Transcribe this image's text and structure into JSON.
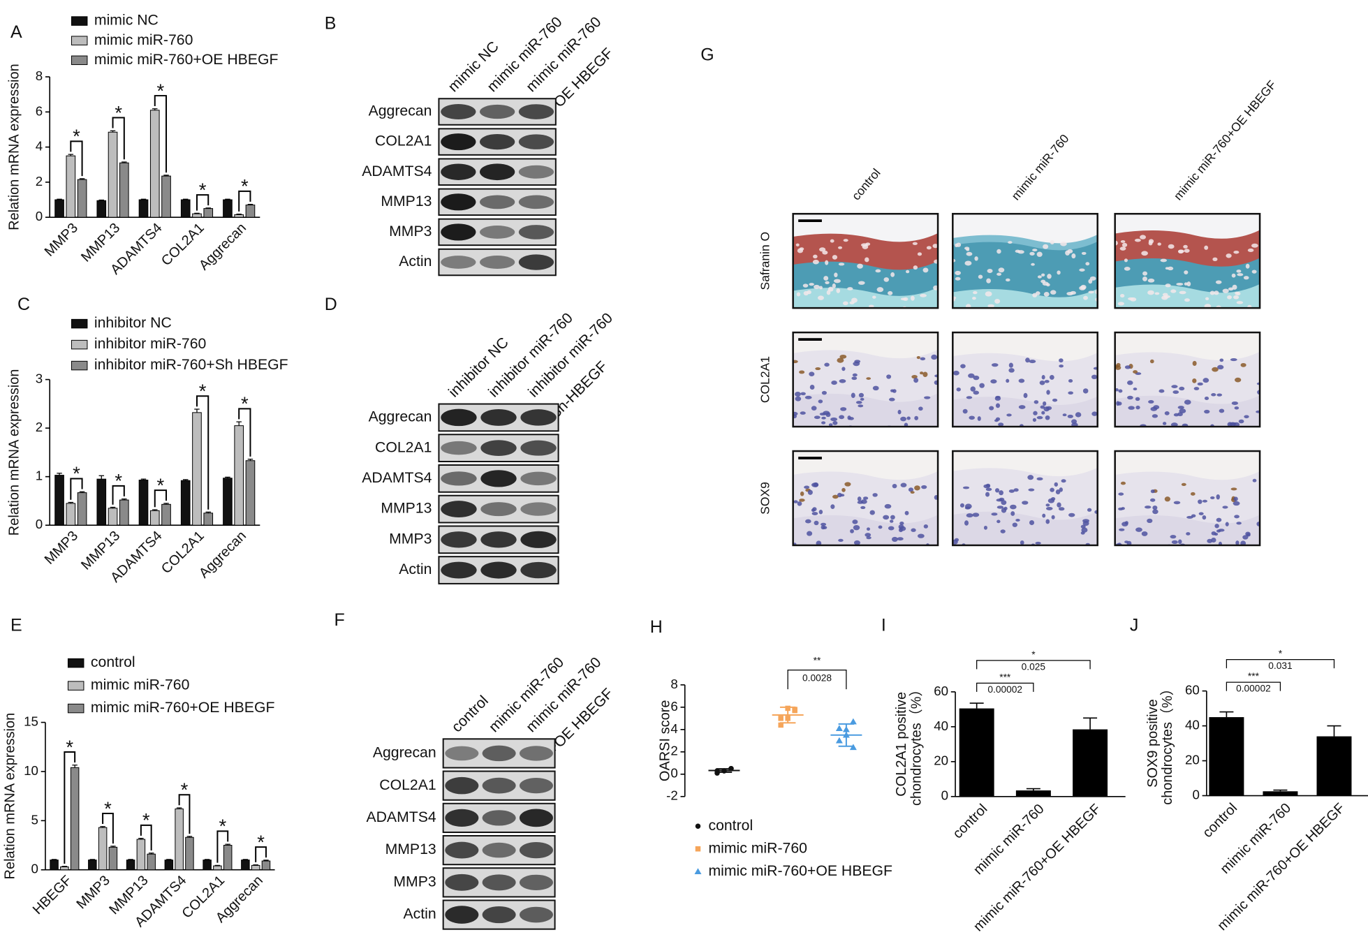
{
  "chart_data": [
    {
      "panel": "A",
      "type": "bar",
      "y_label": [
        "Relation mRNA expression"
      ],
      "categories": [
        "MMP3",
        "MMP13",
        "ADAMTS4",
        "COL2A1",
        "Aggrecan"
      ],
      "series": [
        {
          "name": "mimic NC",
          "color": "#111111",
          "values": [
            1,
            0.95,
            1,
            1,
            1
          ],
          "errors": [
            0.03,
            0.03,
            0.03,
            0.03,
            0.03
          ]
        },
        {
          "name": "mimic miR-760",
          "color": "#bdbdbd",
          "values": [
            3.5,
            4.85,
            6.1,
            0.2,
            0.15
          ],
          "errors": [
            0.08,
            0.08,
            0.08,
            0.03,
            0.03
          ]
        },
        {
          "name": "mimic miR-760+OE HBEGF",
          "color": "#8a8a8a",
          "values": [
            2.15,
            3.1,
            2.35,
            0.5,
            0.7
          ],
          "errors": [
            0.05,
            0.05,
            0.05,
            0.03,
            0.04
          ]
        }
      ],
      "annotations": [
        "*",
        "*",
        "*",
        "*",
        "*"
      ],
      "ylim": [
        0,
        8
      ],
      "yticks": [
        0,
        2,
        4,
        6,
        8
      ],
      "legend": "upper left"
    },
    {
      "panel": "C",
      "type": "bar",
      "y_label": [
        "Relation mRNA expression"
      ],
      "categories": [
        "MMP3",
        "MMP13",
        "ADAMTS4",
        "COL2A1",
        "Aggrecan"
      ],
      "series": [
        {
          "name": "inhibitor NC",
          "color": "#111111",
          "values": [
            1.03,
            0.95,
            0.93,
            0.92,
            0.97
          ],
          "errors": [
            0.04,
            0.07,
            0.02,
            0.02,
            0.02
          ]
        },
        {
          "name": "inhibitor miR-760",
          "color": "#bdbdbd",
          "values": [
            0.45,
            0.35,
            0.3,
            2.32,
            2.05
          ],
          "errors": [
            0.02,
            0.02,
            0.02,
            0.07,
            0.08
          ]
        },
        {
          "name": "inhibitor miR-760+Sh HBEGF",
          "color": "#8a8a8a",
          "values": [
            0.67,
            0.52,
            0.43,
            0.25,
            1.33
          ],
          "errors": [
            0.02,
            0.02,
            0.02,
            0.02,
            0.03
          ]
        }
      ],
      "annotations": [
        "*",
        "*",
        "*",
        "*",
        "*"
      ],
      "ylim": [
        0,
        3
      ],
      "yticks": [
        0,
        1,
        2,
        3
      ],
      "legend": "upper left"
    },
    {
      "panel": "E",
      "type": "bar",
      "y_label": [
        "Relation mRNA expression"
      ],
      "categories": [
        "HBEGF",
        "MMP3",
        "MMP13",
        "ADAMTS4",
        "COL2A1",
        "Aggrecan"
      ],
      "series": [
        {
          "name": "control",
          "color": "#111111",
          "values": [
            1,
            1,
            1,
            1,
            1,
            1
          ],
          "errors": [
            0.05,
            0.05,
            0.05,
            0.05,
            0.05,
            0.05
          ]
        },
        {
          "name": "mimic miR-760",
          "color": "#bdbdbd",
          "values": [
            0.3,
            4.3,
            3.1,
            6.2,
            0.4,
            0.45
          ],
          "errors": [
            0.05,
            0.1,
            0.1,
            0.1,
            0.05,
            0.05
          ]
        },
        {
          "name": "mimic miR-760+OE HBEGF",
          "color": "#8a8a8a",
          "values": [
            10.4,
            2.3,
            1.6,
            3.3,
            2.5,
            0.9
          ],
          "errors": [
            0.25,
            0.1,
            0.1,
            0.1,
            0.1,
            0.08
          ]
        }
      ],
      "annotations": [
        "*",
        "*",
        "*",
        "*",
        "*",
        "*"
      ],
      "ylim": [
        0,
        15
      ],
      "yticks": [
        0,
        5,
        10,
        15
      ],
      "legend": "upper left"
    },
    {
      "panel": "H",
      "type": "scatter",
      "y_label": [
        "OARSI score"
      ],
      "series": [
        {
          "name": "control",
          "color": "#111111",
          "marker": "circle",
          "values": [
            0.3,
            0.3,
            0.5,
            0.1,
            0.3,
            0.5
          ],
          "mean": 0.33,
          "sd": 0.15
        },
        {
          "name": "mimic miR-760",
          "color": "#f5a55a",
          "marker": "square",
          "values": [
            5.0,
            5.9,
            5.7,
            4.4,
            5.0,
            5.8
          ],
          "mean": 5.3,
          "sd": 0.7
        },
        {
          "name": "mimic miR-760+OE HBEGF",
          "color": "#4a9be0",
          "marker": "triangle",
          "values": [
            3.0,
            4.0,
            2.4,
            4.1,
            3.5,
            4.7
          ],
          "mean": 3.5,
          "sd": 1.0
        }
      ],
      "annotations": [
        {
          "stars": "**",
          "p": "0.0028"
        }
      ],
      "ylim": [
        -2,
        8
      ],
      "yticks": [
        -2,
        0,
        2,
        4,
        6,
        8
      ],
      "legend": "below"
    },
    {
      "panel": "I",
      "type": "bar",
      "y_label": [
        "COL2A1 positive",
        "chondrocytes（%）"
      ],
      "categories": [
        "control",
        "mimic miR-760",
        "mimic miR-760+OE HBEGF"
      ],
      "values": [
        50.5,
        3.5,
        38.5
      ],
      "errors": [
        3,
        1,
        6.5
      ],
      "color": "#000000",
      "annotations": [
        {
          "stars": "***",
          "p": "0.00002"
        },
        {
          "stars": "*",
          "p": "0.025"
        }
      ],
      "ylim": [
        0,
        60
      ],
      "yticks": [
        0,
        20,
        40,
        60
      ]
    },
    {
      "panel": "J",
      "type": "bar",
      "y_label": [
        "SOX9 positive",
        "chondrocytes（%）"
      ],
      "categories": [
        "control",
        "mimic miR-760",
        "mimic miR-760+OE HBEGF"
      ],
      "values": [
        45,
        2.5,
        34
      ],
      "errors": [
        3,
        0.7,
        6
      ],
      "color": "#000000",
      "annotations": [
        {
          "stars": "***",
          "p": "0.00002"
        },
        {
          "stars": "*",
          "p": "0.031"
        }
      ],
      "ylim": [
        0,
        60
      ],
      "yticks": [
        0,
        20,
        40,
        60
      ]
    }
  ],
  "blots": [
    {
      "panel": "B",
      "columns": [
        [
          "mimic NC"
        ],
        [
          "mimic miR-760"
        ],
        [
          "mimic miR-760",
          "+OE HBEGF"
        ]
      ],
      "rows": [
        "Aggrecan",
        "COL2A1",
        "ADAMTS4",
        "MMP13",
        "MMP3",
        "Actin"
      ]
    },
    {
      "panel": "D",
      "columns": [
        [
          "inhibitor NC"
        ],
        [
          "inhibitor miR-760"
        ],
        [
          "inhibitor miR-760",
          "Sh-HBEGF"
        ]
      ],
      "rows": [
        "Aggrecan",
        "COL2A1",
        "ADAMTS4",
        "MMP13",
        "MMP3",
        "Actin"
      ]
    },
    {
      "panel": "F",
      "columns": [
        [
          "control"
        ],
        [
          "mimic miR-760"
        ],
        [
          "mimic miR-760",
          "+OE HBEGF"
        ]
      ],
      "rows": [
        "Aggrecan",
        "COL2A1",
        "ADAMTS4",
        "MMP13",
        "MMP3",
        "Actin"
      ]
    }
  ],
  "histology": {
    "panel": "G",
    "columns": [
      "control",
      "mimic miR-760",
      "mimic miR-760+OE HBEGF"
    ],
    "rows": [
      "Safranin O",
      "COL2A1",
      "SOX9"
    ]
  }
}
